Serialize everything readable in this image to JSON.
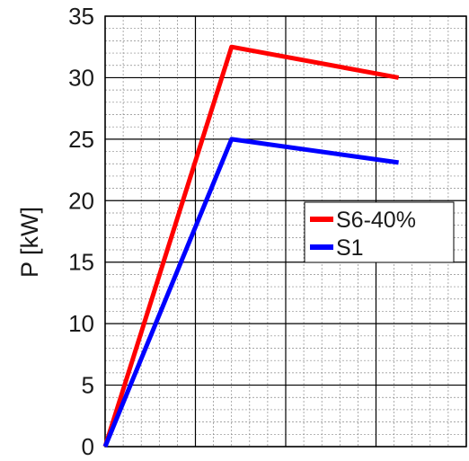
{
  "chart_data": {
    "type": "line",
    "title": "",
    "xlabel": "",
    "ylabel": "P [kW]",
    "ylim": [
      0,
      35
    ],
    "xlim": [
      0,
      4
    ],
    "yticks": [
      0,
      5,
      10,
      15,
      20,
      25,
      30,
      35
    ],
    "x_major_grid": [
      0,
      1,
      2,
      3,
      4
    ],
    "minor_divisions": 5,
    "grid": true,
    "legend_position": "center-right",
    "series": [
      {
        "name": "S6-40%",
        "color": "#ff0000",
        "x": [
          0,
          1.4,
          3.25
        ],
        "y": [
          0,
          32.5,
          30
        ]
      },
      {
        "name": "S1",
        "color": "#0000ff",
        "x": [
          0,
          1.4,
          3.25
        ],
        "y": [
          0,
          25,
          23.1
        ]
      }
    ]
  }
}
